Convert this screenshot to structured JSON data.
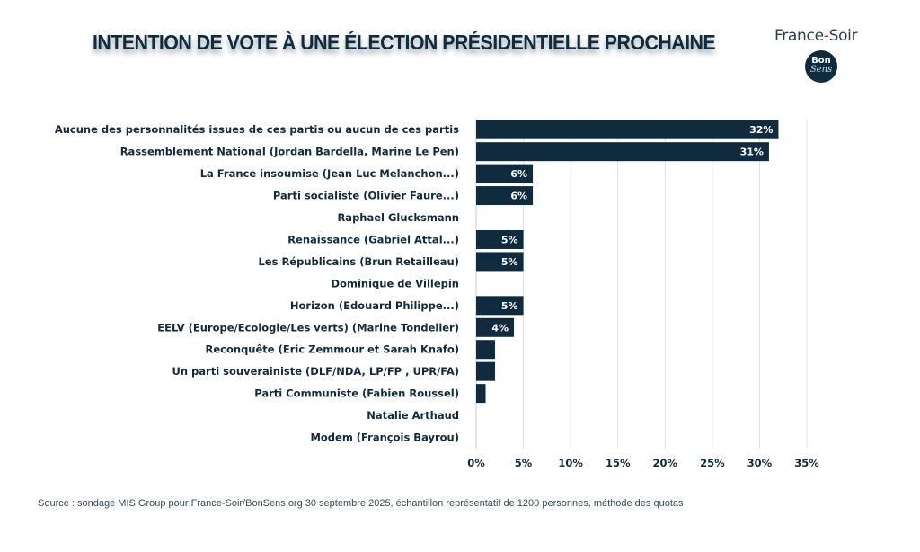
{
  "header": {
    "title": "INTENTION DE VOTE À UNE ÉLECTION PRÉSIDENTIELLE PROCHAINE",
    "brand_left": "France",
    "brand_dash": "-",
    "brand_right": "Soir",
    "badge_top": "Bon",
    "badge_bottom": "Sens"
  },
  "colors": {
    "bar": "#0f2b3d",
    "grid": "#dde3e8",
    "brand_red": "#d62030"
  },
  "chart_data": {
    "type": "bar",
    "orientation": "horizontal",
    "title": "INTENTION DE VOTE À UNE ÉLECTION PRÉSIDENTIELLE PROCHAINE",
    "xlabel": "",
    "ylabel": "",
    "xlim": [
      0,
      35
    ],
    "x_ticks": [
      0,
      5,
      10,
      15,
      20,
      25,
      30,
      35
    ],
    "x_tick_labels": [
      "0%",
      "5%",
      "10%",
      "15%",
      "20%",
      "25%",
      "30%",
      "35%"
    ],
    "grid": true,
    "categories": [
      "Aucune des personnalités issues de ces partis ou aucun de ces partis",
      "Rassemblement National (Jordan Bardella, Marine Le Pen)",
      "La France insoumise (Jean Luc Melanchon...)",
      "Parti socialiste (Olivier Faure...)",
      "Raphael Glucksmann",
      "Renaissance (Gabriel Attal...)",
      "Les Républicains (Brun Retailleau)",
      "Dominique de Villepin",
      "Horizon (Edouard Philippe...)",
      "EELV (Europe/Ecologie/Les verts) (Marine Tondelier)",
      "Reconquête (Eric Zemmour et Sarah Knafo)",
      "Un parti souverainiste (DLF/NDA, LP/FP , UPR/FA)",
      "Parti Communiste (Fabien Roussel)",
      "Natalie Arthaud",
      "Modem (François Bayrou)"
    ],
    "values": [
      32,
      31,
      6,
      6,
      0,
      5,
      5,
      0,
      5,
      4,
      2,
      2,
      1,
      0,
      0
    ],
    "data_labels": [
      "32%",
      "31%",
      "6%",
      "6%",
      "",
      "5%",
      "5%",
      "",
      "5%",
      "4%",
      "",
      "",
      "",
      "",
      ""
    ]
  },
  "footer": {
    "source": "Source : sondage MIS Group pour France-Soir/BonSens.org 30 septembre 2025, échantillon représentatif de 1200 personnes, méthode des quotas"
  }
}
